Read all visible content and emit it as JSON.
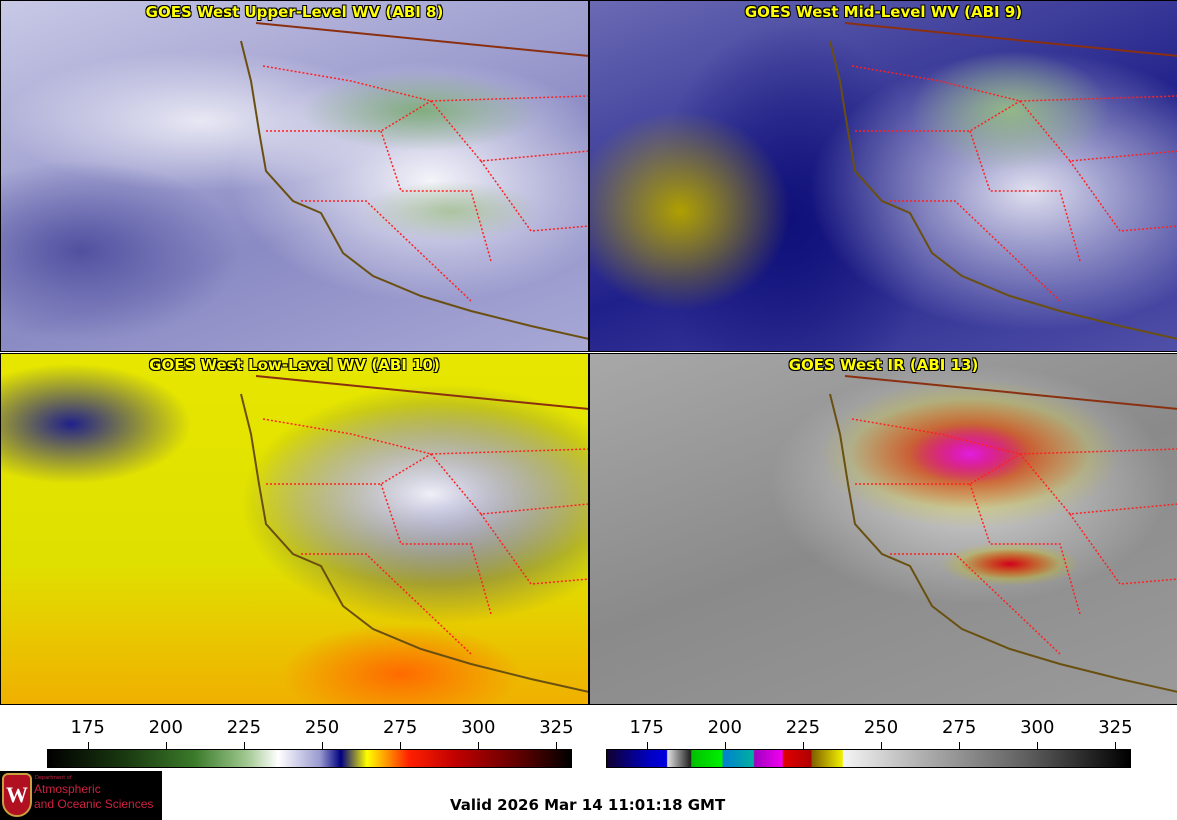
{
  "panels": [
    {
      "title": "GOES West Upper-Level WV (ABI 8)"
    },
    {
      "title": "GOES West Mid-Level WV (ABI 9)"
    },
    {
      "title": "GOES West Low-Level WV (ABI 10)"
    },
    {
      "title": "GOES West IR (ABI 13)"
    }
  ],
  "colorbars": [
    {
      "name": "water-vapor",
      "range": [
        162,
        330
      ],
      "ticks": [
        "175",
        "200",
        "225",
        "250",
        "275",
        "300",
        "325"
      ]
    },
    {
      "name": "infrared",
      "range": [
        162,
        330
      ],
      "ticks": [
        "175",
        "200",
        "225",
        "250",
        "275",
        "300",
        "325"
      ]
    }
  ],
  "logo": {
    "line1": "Department of",
    "line2": "Atmospheric",
    "line3": "and Oceanic Sciences",
    "crest_letter": "W"
  },
  "footer": {
    "valid": "Valid 2026 Mar 14 11:01:18 GMT"
  },
  "colors": {
    "title": "#ffff00",
    "state_borders": "#ff2020",
    "coast": "#6a5010"
  }
}
